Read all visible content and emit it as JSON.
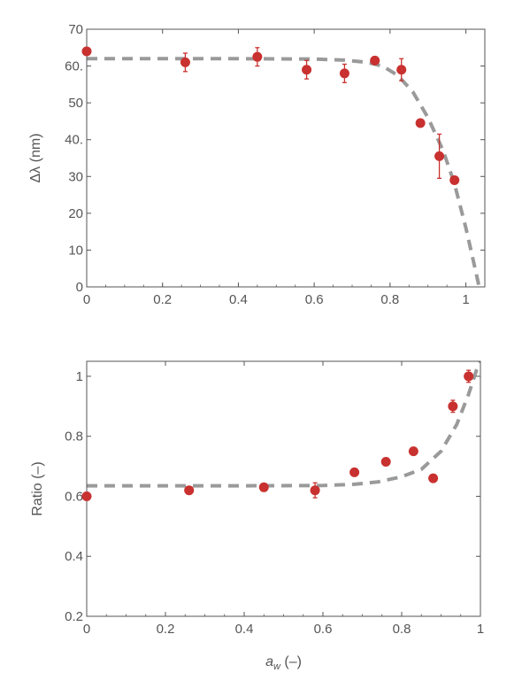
{
  "colors": {
    "point": "#c8312f",
    "error_bar": "#c8312f",
    "fit_line": "#9a9a9a",
    "frame": "#555555",
    "text": "#555555"
  },
  "chart_data": [
    {
      "type": "scatter",
      "title": "",
      "xlabel": "",
      "ylabel": "Δλ (nm)",
      "xlim": [
        0,
        1.05
      ],
      "ylim": [
        0,
        70
      ],
      "grid": false,
      "legend": "none",
      "x_ticks": [
        0,
        0.2,
        0.4,
        0.6,
        0.8,
        1
      ],
      "x_tick_labels": [
        "0",
        "0.2",
        "0.4",
        "0.6",
        "0.8",
        "1"
      ],
      "y_ticks": [
        0,
        10,
        20,
        30,
        40,
        50,
        60,
        70
      ],
      "y_tick_labels": [
        "0",
        "10",
        "20",
        "30",
        "40.",
        "50",
        "60.",
        "70"
      ],
      "points": [
        {
          "x": 0.0,
          "y": 64,
          "err": 0
        },
        {
          "x": 0.26,
          "y": 61,
          "err": 2.5
        },
        {
          "x": 0.45,
          "y": 62.5,
          "err": 2.5
        },
        {
          "x": 0.58,
          "y": 59,
          "err": 2.5
        },
        {
          "x": 0.68,
          "y": 58,
          "err": 2.5
        },
        {
          "x": 0.76,
          "y": 61.5,
          "err": 0
        },
        {
          "x": 0.83,
          "y": 59,
          "err": 3
        },
        {
          "x": 0.88,
          "y": 44.5,
          "err": 0
        },
        {
          "x": 0.93,
          "y": 35.5,
          "err": 6
        },
        {
          "x": 0.97,
          "y": 29,
          "err": 0
        }
      ],
      "fit_line": {
        "style": "dashed",
        "x": [
          0,
          0.2,
          0.4,
          0.6,
          0.68,
          0.74,
          0.78,
          0.82,
          0.86,
          0.9,
          0.94,
          0.97,
          1.0,
          1.02,
          1.035
        ],
        "y": [
          62,
          62,
          62,
          61.9,
          61.6,
          61,
          60,
          57.5,
          53,
          46,
          37,
          28,
          16,
          7,
          0
        ]
      }
    },
    {
      "type": "scatter",
      "title": "",
      "xlabel": "a_w (–)",
      "xlabel_main": "a",
      "xlabel_sub": "w",
      "xlabel_unit": " (–)",
      "ylabel": "Ratio (–)",
      "xlim": [
        0,
        1
      ],
      "ylim": [
        0.2,
        1.05
      ],
      "grid": false,
      "legend": "none",
      "x_ticks": [
        0,
        0.2,
        0.4,
        0.6,
        0.8,
        1
      ],
      "x_tick_labels": [
        "0",
        "0.2",
        "0.4",
        "0.6",
        "0.8",
        "1"
      ],
      "y_ticks": [
        0.2,
        0.4,
        0.6,
        0.8,
        1.0
      ],
      "y_tick_labels": [
        "0.2",
        "0.4",
        "0.6",
        "0.8",
        "1"
      ],
      "points": [
        {
          "x": 0.0,
          "y": 0.6,
          "err": 0
        },
        {
          "x": 0.26,
          "y": 0.62,
          "err": 0
        },
        {
          "x": 0.45,
          "y": 0.63,
          "err": 0
        },
        {
          "x": 0.58,
          "y": 0.62,
          "err": 0.025
        },
        {
          "x": 0.68,
          "y": 0.68,
          "err": 0
        },
        {
          "x": 0.76,
          "y": 0.715,
          "err": 0
        },
        {
          "x": 0.83,
          "y": 0.75,
          "err": 0
        },
        {
          "x": 0.88,
          "y": 0.66,
          "err": 0
        },
        {
          "x": 0.93,
          "y": 0.9,
          "err": 0.02
        },
        {
          "x": 0.97,
          "y": 1.0,
          "err": 0.02
        }
      ],
      "fit_line": {
        "style": "dashed",
        "x": [
          0,
          0.2,
          0.4,
          0.6,
          0.68,
          0.74,
          0.8,
          0.85,
          0.9,
          0.94,
          0.97,
          0.99,
          1.0
        ],
        "y": [
          0.635,
          0.635,
          0.635,
          0.636,
          0.64,
          0.648,
          0.665,
          0.69,
          0.75,
          0.84,
          0.94,
          1.02,
          1.05
        ]
      }
    }
  ]
}
